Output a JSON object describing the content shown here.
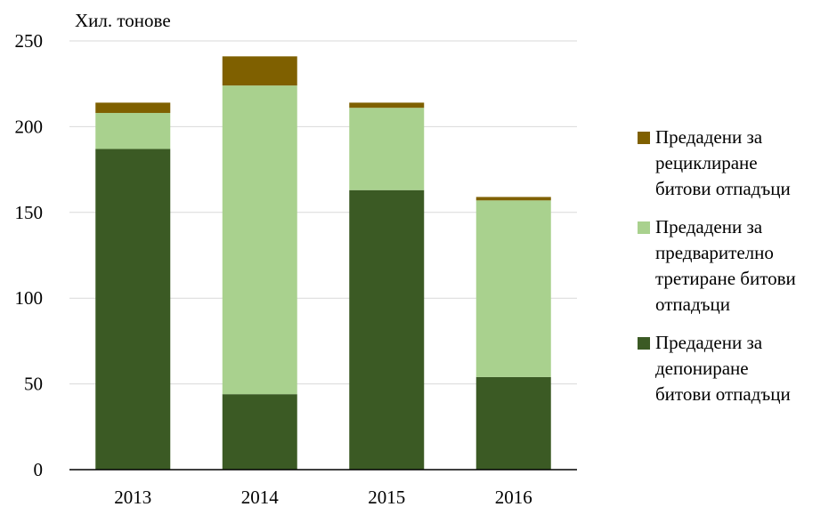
{
  "chart_data": {
    "type": "bar",
    "stacked": true,
    "title": "",
    "xlabel": "",
    "ylabel": "Хил. тонове",
    "ylim": [
      0,
      250
    ],
    "yticks": [
      0,
      50,
      100,
      150,
      200,
      250
    ],
    "grid": true,
    "legend_position": "right",
    "categories": [
      "2013",
      "2014",
      "2015",
      "2016"
    ],
    "series": [
      {
        "name": "Предадени за депониране битови отпадъци",
        "color": "#3b5a24",
        "values": [
          187,
          44,
          163,
          54
        ]
      },
      {
        "name": "Предадени за предварително третиране битови отпадъци",
        "color": "#a9d18e",
        "values": [
          21,
          180,
          48,
          103
        ]
      },
      {
        "name": "Предадени за рециклиране битови отпадъци",
        "color": "#7f6000",
        "values": [
          6,
          17,
          3,
          2
        ]
      }
    ]
  },
  "legend": {
    "items": [
      {
        "label": "Предадени за\nрециклиране\nбитови отпадъци",
        "color": "#7f6000"
      },
      {
        "label": "Предадени за\nпредварително\nтретиране битови\nотпадъци",
        "color": "#a9d18e"
      },
      {
        "label": "Предадени за\nдепониране\nбитови отпадъци",
        "color": "#3b5a24"
      }
    ]
  },
  "colors": {
    "gridline": "#d9d9d9",
    "axis": "#000000"
  }
}
